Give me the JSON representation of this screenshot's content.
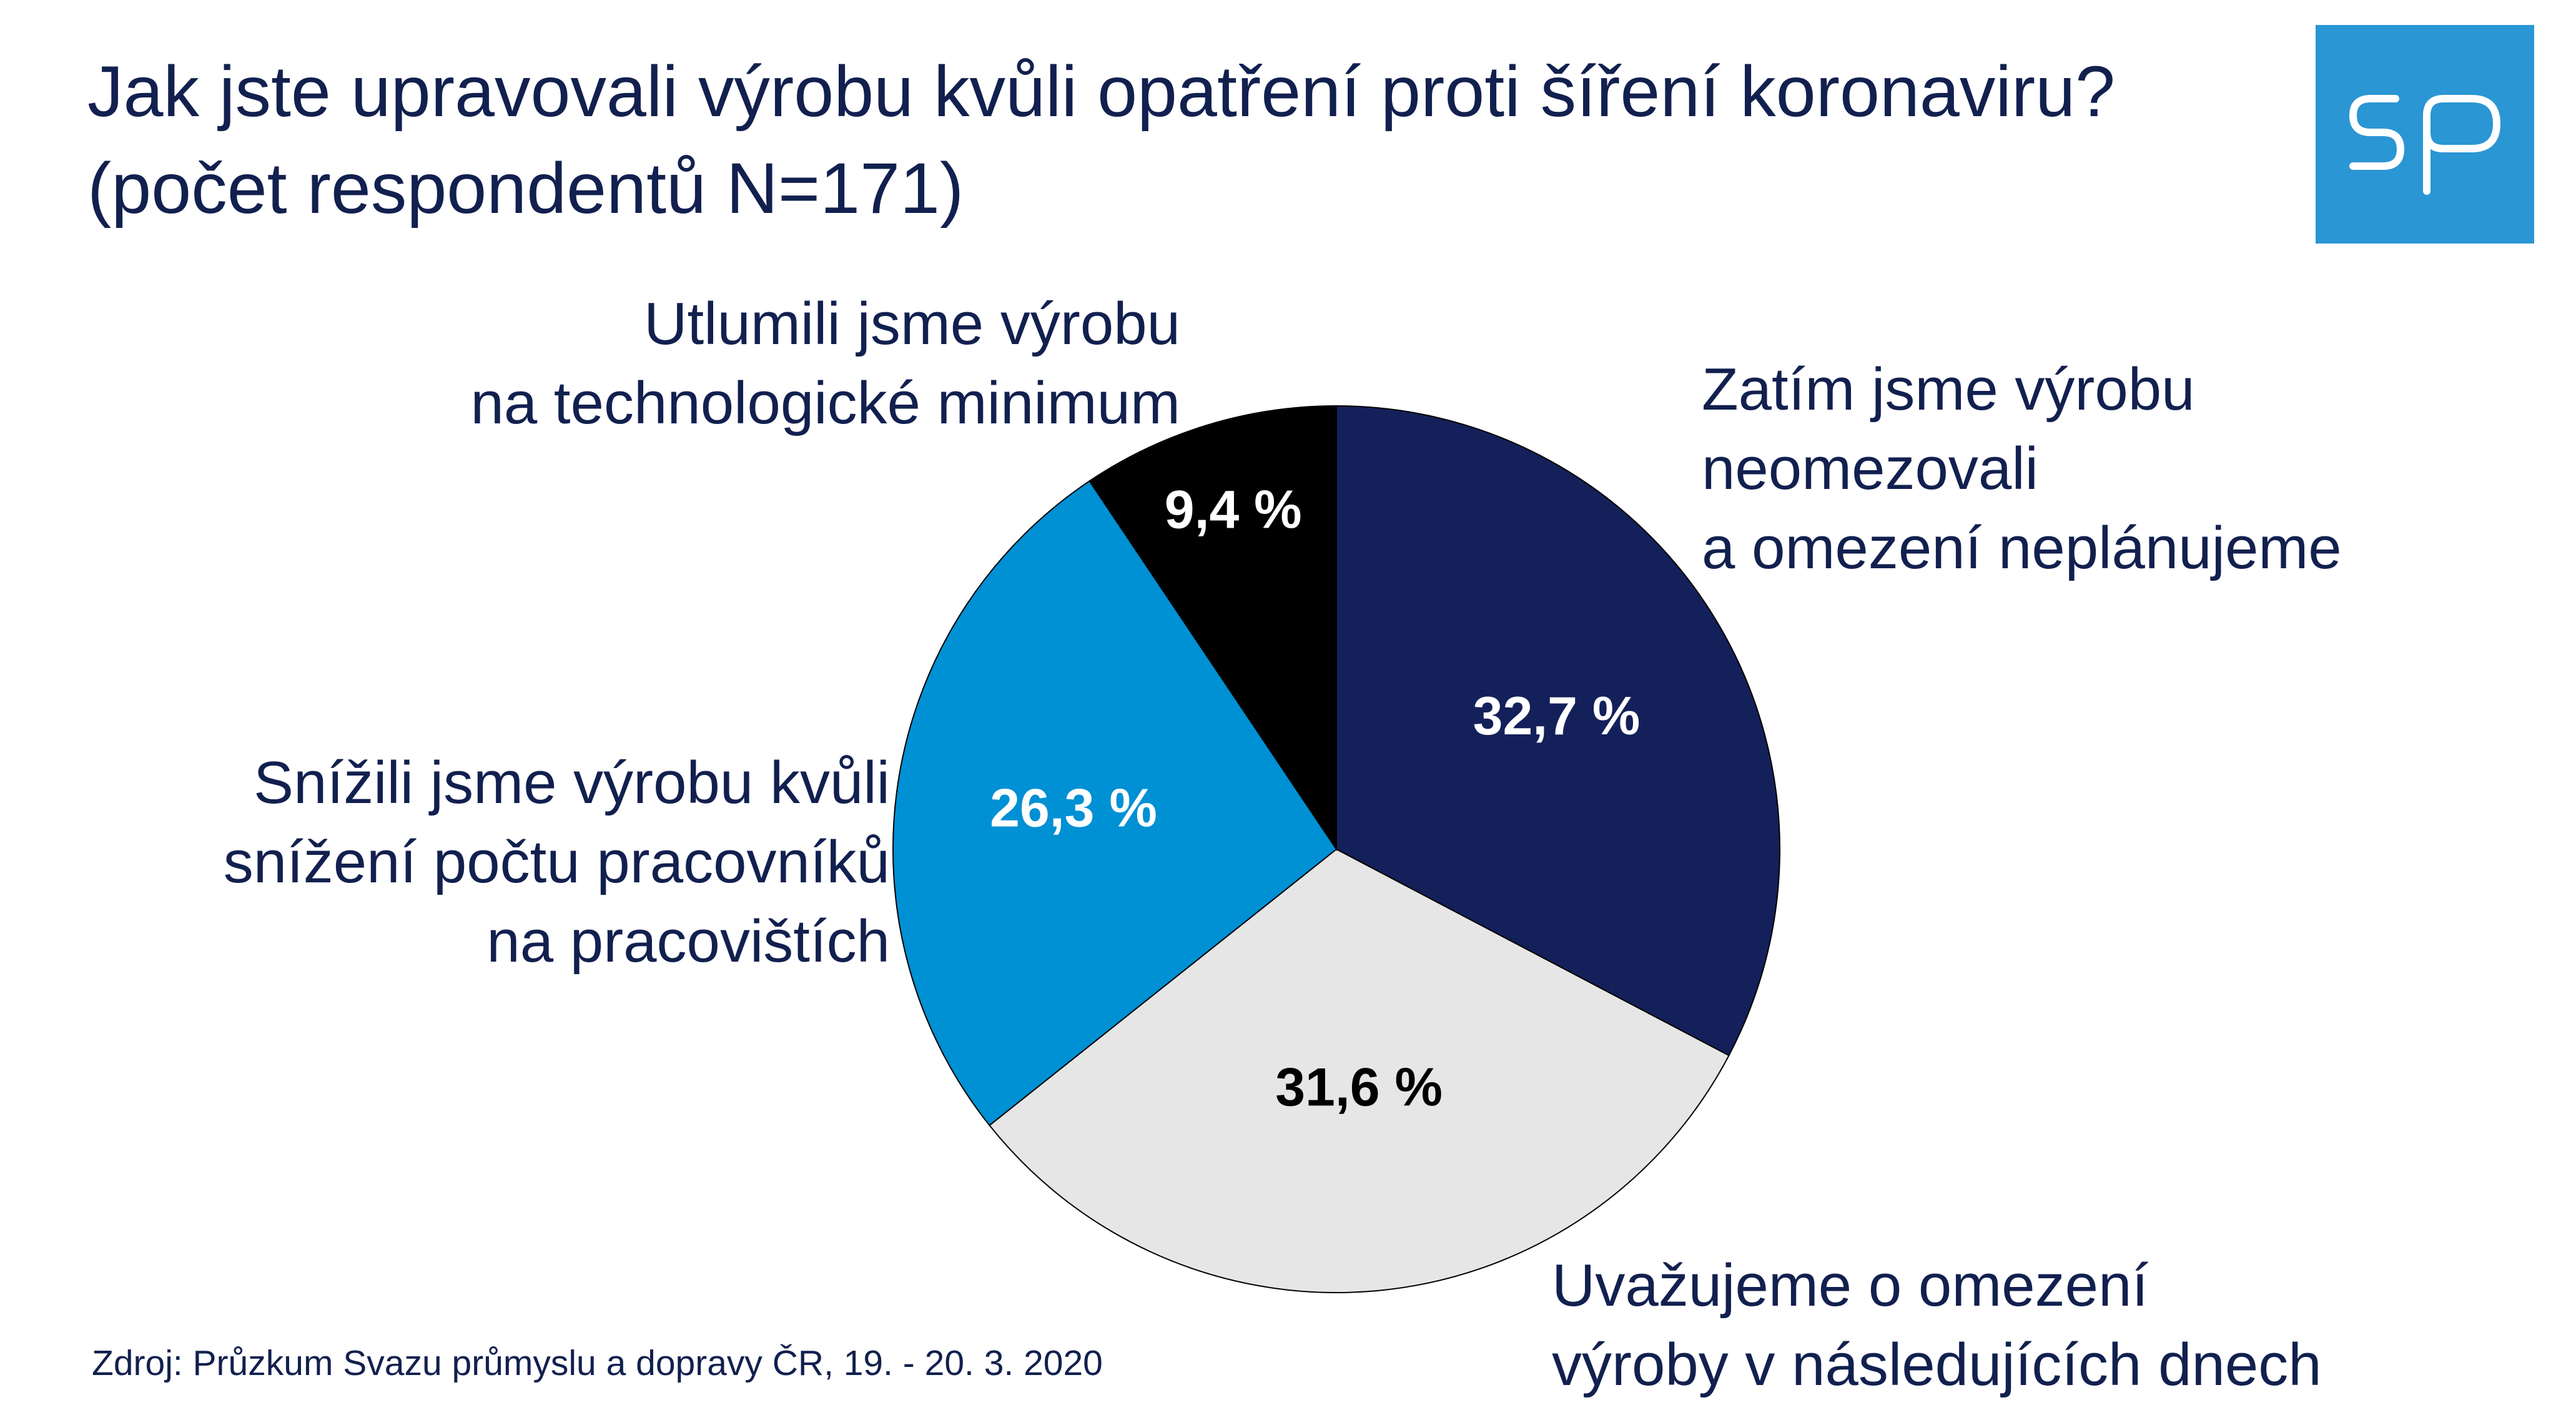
{
  "title": {
    "line1": "Jak jste upravovali výrobu kvůli opatření proti šíření koronaviru?",
    "line2": "(počet respondentů N=171)"
  },
  "logo": {
    "text": "SP",
    "background": "#2a96d4",
    "foreground": "#ffffff"
  },
  "source": "Zdroj: Průzkum Svazu průmyslu a dopravy ČR, 19. - 20. 3. 2020",
  "chart_data": {
    "type": "pie",
    "start": "12 o'clock",
    "direction": "clockwise",
    "slices": [
      {
        "category_lines": [
          "Zatím jsme výrobu",
          "neomezovali",
          "a omezení neplánujeme"
        ],
        "value": 32.7,
        "data_label": "32,7 %",
        "color": "#14205a",
        "label_color": "#ffffff"
      },
      {
        "category_lines": [
          "Uvažujeme o omezení",
          "výroby v následujících dnech"
        ],
        "value": 31.6,
        "data_label": "31,6 %",
        "color": "#e6e6e6",
        "label_color": "#000000"
      },
      {
        "category_lines": [
          "Snížili jsme výrobu kvůli",
          "snížení počtu pracovníků",
          "na pracovištích"
        ],
        "value": 26.3,
        "data_label": "26,3 %",
        "color": "#0090d4",
        "label_color": "#ffffff"
      },
      {
        "category_lines": [
          "Utlumili jsme výrobu",
          "na technologické minimum"
        ],
        "value": 9.4,
        "data_label": "9,4 %",
        "color": "#000000",
        "label_color": "#ffffff"
      }
    ]
  }
}
